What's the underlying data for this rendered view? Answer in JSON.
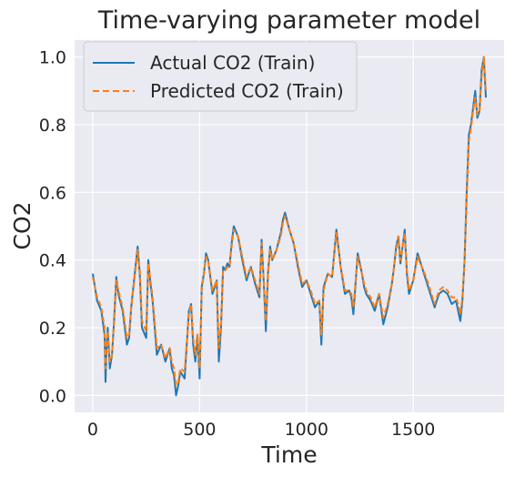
{
  "chart_data": {
    "type": "line",
    "title": "Time-varying parameter model",
    "xlabel": "Time",
    "ylabel": "CO2",
    "xlim": [
      -85,
      1925
    ],
    "ylim": [
      -0.05,
      1.05
    ],
    "xticks": [
      0,
      500,
      1000,
      1500
    ],
    "yticks": [
      0.0,
      0.2,
      0.4,
      0.6,
      0.8,
      1.0
    ],
    "xtick_labels": [
      "0",
      "500",
      "1000",
      "1500"
    ],
    "ytick_labels": [
      "0.0",
      "0.2",
      "0.4",
      "0.6",
      "0.8",
      "1.0"
    ],
    "grid": true,
    "legend_position": "upper-left",
    "background_color": "#eaeaf2",
    "series": [
      {
        "name": "Actual CO2 (Train)",
        "color": "#1f77b4",
        "style": "solid",
        "x": [
          0,
          20,
          40,
          55,
          60,
          65,
          70,
          80,
          90,
          100,
          110,
          120,
          140,
          160,
          170,
          180,
          200,
          210,
          220,
          230,
          250,
          260,
          270,
          280,
          300,
          320,
          340,
          360,
          370,
          380,
          390,
          400,
          410,
          430,
          450,
          460,
          470,
          480,
          490,
          500,
          510,
          520,
          530,
          540,
          560,
          580,
          590,
          600,
          610,
          620,
          630,
          640,
          650,
          660,
          680,
          700,
          720,
          740,
          760,
          780,
          790,
          800,
          810,
          820,
          830,
          840,
          860,
          880,
          890,
          900,
          920,
          940,
          960,
          980,
          1000,
          1020,
          1040,
          1060,
          1070,
          1080,
          1100,
          1120,
          1140,
          1160,
          1180,
          1200,
          1210,
          1220,
          1240,
          1260,
          1270,
          1280,
          1300,
          1320,
          1340,
          1360,
          1380,
          1400,
          1410,
          1420,
          1430,
          1440,
          1460,
          1470,
          1480,
          1500,
          1520,
          1540,
          1560,
          1580,
          1600,
          1620,
          1640,
          1660,
          1680,
          1700,
          1710,
          1720,
          1730,
          1740,
          1750,
          1760,
          1770,
          1780,
          1790,
          1800,
          1810,
          1820,
          1830,
          1840
        ],
        "values": [
          0.36,
          0.28,
          0.25,
          0.18,
          0.04,
          0.15,
          0.2,
          0.08,
          0.12,
          0.22,
          0.35,
          0.3,
          0.25,
          0.15,
          0.17,
          0.26,
          0.38,
          0.44,
          0.36,
          0.2,
          0.17,
          0.4,
          0.33,
          0.28,
          0.12,
          0.15,
          0.1,
          0.14,
          0.08,
          0.06,
          0.0,
          0.03,
          0.07,
          0.05,
          0.25,
          0.27,
          0.15,
          0.1,
          0.18,
          0.05,
          0.32,
          0.36,
          0.42,
          0.4,
          0.3,
          0.34,
          0.1,
          0.2,
          0.38,
          0.37,
          0.39,
          0.38,
          0.45,
          0.5,
          0.47,
          0.4,
          0.34,
          0.38,
          0.33,
          0.29,
          0.46,
          0.34,
          0.19,
          0.36,
          0.44,
          0.4,
          0.43,
          0.48,
          0.52,
          0.54,
          0.49,
          0.45,
          0.38,
          0.32,
          0.34,
          0.3,
          0.26,
          0.28,
          0.15,
          0.32,
          0.36,
          0.35,
          0.49,
          0.38,
          0.3,
          0.31,
          0.29,
          0.24,
          0.42,
          0.36,
          0.32,
          0.3,
          0.28,
          0.25,
          0.3,
          0.21,
          0.26,
          0.33,
          0.38,
          0.44,
          0.47,
          0.39,
          0.49,
          0.36,
          0.3,
          0.34,
          0.42,
          0.38,
          0.34,
          0.3,
          0.26,
          0.3,
          0.31,
          0.3,
          0.27,
          0.28,
          0.25,
          0.22,
          0.28,
          0.4,
          0.6,
          0.77,
          0.8,
          0.85,
          0.9,
          0.82,
          0.84,
          0.96,
          1.0,
          0.88
        ]
      },
      {
        "name": "Predicted CO2 (Train)",
        "color": "#ff7f0e",
        "style": "dashed",
        "x": [
          0,
          20,
          40,
          55,
          60,
          65,
          70,
          80,
          90,
          100,
          110,
          120,
          140,
          160,
          170,
          180,
          200,
          210,
          220,
          230,
          250,
          260,
          270,
          280,
          300,
          320,
          340,
          360,
          370,
          380,
          390,
          400,
          410,
          430,
          450,
          460,
          470,
          480,
          490,
          500,
          510,
          520,
          530,
          540,
          560,
          580,
          590,
          600,
          610,
          620,
          630,
          640,
          650,
          660,
          680,
          700,
          720,
          740,
          760,
          780,
          790,
          800,
          810,
          820,
          830,
          840,
          860,
          880,
          890,
          900,
          920,
          940,
          960,
          980,
          1000,
          1020,
          1040,
          1060,
          1070,
          1080,
          1100,
          1120,
          1140,
          1160,
          1180,
          1200,
          1210,
          1220,
          1240,
          1260,
          1270,
          1280,
          1300,
          1320,
          1340,
          1360,
          1380,
          1400,
          1410,
          1420,
          1430,
          1440,
          1460,
          1470,
          1480,
          1500,
          1520,
          1540,
          1560,
          1580,
          1600,
          1620,
          1640,
          1660,
          1680,
          1700,
          1710,
          1720,
          1730,
          1740,
          1750,
          1760,
          1770,
          1780,
          1790,
          1800,
          1810,
          1820,
          1830,
          1840
        ],
        "values": [
          0.35,
          0.29,
          0.26,
          0.2,
          0.08,
          0.15,
          0.19,
          0.1,
          0.12,
          0.22,
          0.34,
          0.31,
          0.26,
          0.17,
          0.18,
          0.26,
          0.37,
          0.43,
          0.37,
          0.22,
          0.19,
          0.39,
          0.34,
          0.29,
          0.14,
          0.15,
          0.11,
          0.14,
          0.1,
          0.08,
          0.03,
          0.04,
          0.08,
          0.07,
          0.24,
          0.27,
          0.17,
          0.12,
          0.18,
          0.08,
          0.31,
          0.36,
          0.41,
          0.4,
          0.31,
          0.34,
          0.14,
          0.21,
          0.37,
          0.37,
          0.38,
          0.38,
          0.44,
          0.49,
          0.47,
          0.41,
          0.35,
          0.38,
          0.34,
          0.3,
          0.45,
          0.34,
          0.22,
          0.36,
          0.43,
          0.4,
          0.43,
          0.47,
          0.51,
          0.53,
          0.49,
          0.45,
          0.39,
          0.33,
          0.34,
          0.31,
          0.27,
          0.28,
          0.18,
          0.31,
          0.36,
          0.35,
          0.48,
          0.38,
          0.31,
          0.31,
          0.3,
          0.26,
          0.41,
          0.36,
          0.33,
          0.31,
          0.29,
          0.26,
          0.3,
          0.23,
          0.27,
          0.33,
          0.38,
          0.43,
          0.47,
          0.4,
          0.48,
          0.37,
          0.31,
          0.34,
          0.41,
          0.38,
          0.35,
          0.31,
          0.27,
          0.31,
          0.32,
          0.31,
          0.29,
          0.29,
          0.27,
          0.24,
          0.29,
          0.4,
          0.58,
          0.75,
          0.79,
          0.84,
          0.88,
          0.83,
          0.84,
          0.94,
          1.0,
          0.9
        ]
      }
    ]
  }
}
